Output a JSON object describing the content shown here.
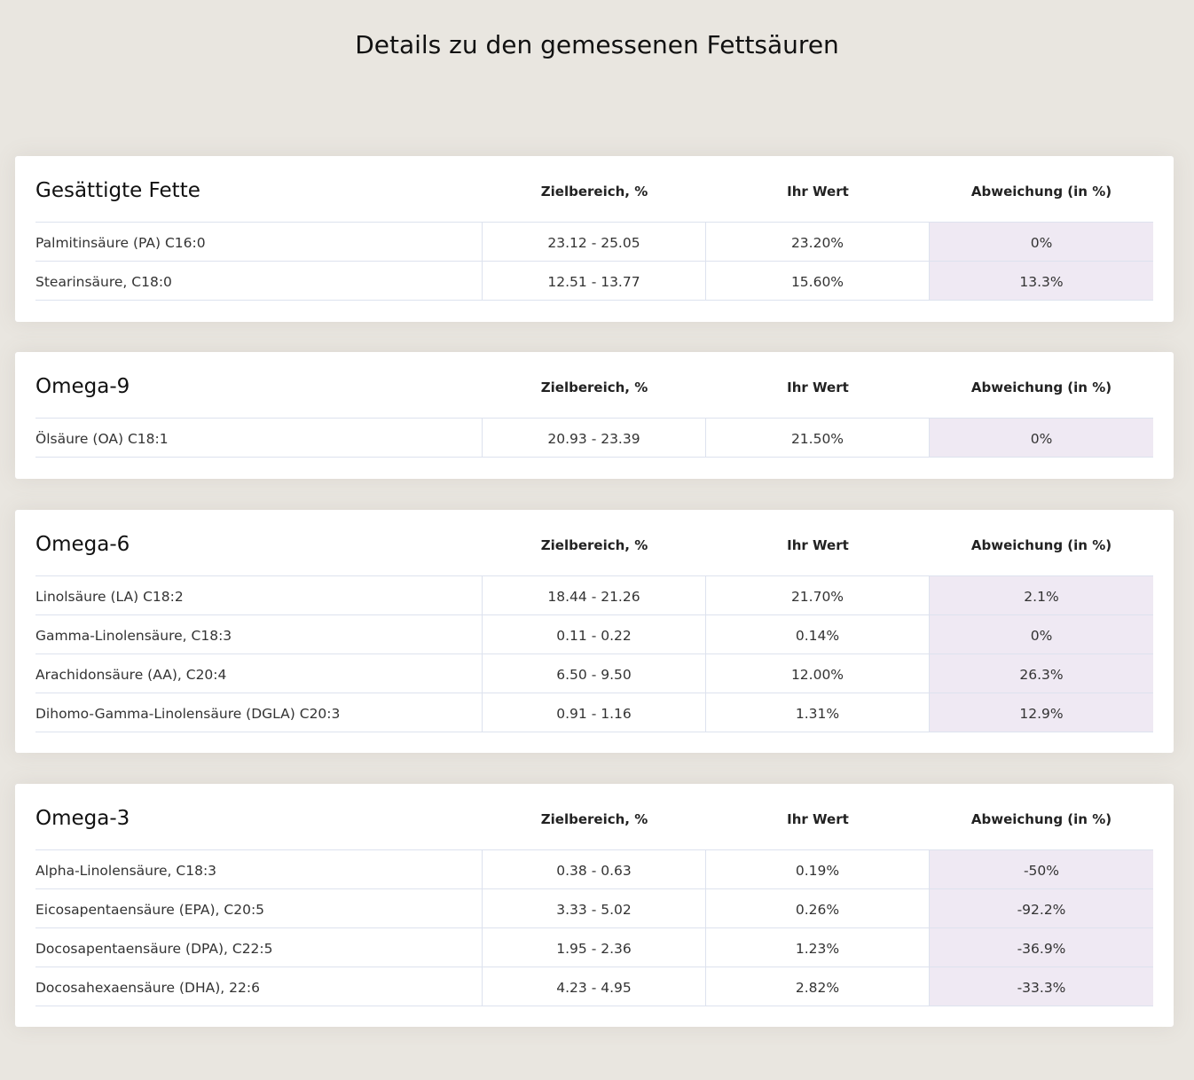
{
  "page": {
    "title": "Details zu den gemessenen Fettsäuren"
  },
  "colors": {
    "background": "#e9e6e0",
    "card": "#ffffff",
    "deviation_cell": "#efe9f3",
    "divider": "#dde2ee"
  },
  "sections": [
    {
      "title": "Gesättigte Fette",
      "col_range": "Zielbereich, %",
      "col_value": "Ihr Wert",
      "col_dev": "Abweichung (in %)",
      "rows": [
        {
          "name": "Palmitinsäure (PA) C16:0",
          "range": "23.12 - 25.05",
          "value": "23.20%",
          "dev": "0%"
        },
        {
          "name": "Stearinsäure, C18:0",
          "range": "12.51 - 13.77",
          "value": "15.60%",
          "dev": "13.3%"
        }
      ]
    },
    {
      "title": "Omega-9",
      "col_range": "Zielbereich, %",
      "col_value": "Ihr Wert",
      "col_dev": "Abweichung (in %)",
      "rows": [
        {
          "name": "Ölsäure (OA) C18:1",
          "range": "20.93 - 23.39",
          "value": "21.50%",
          "dev": "0%"
        }
      ]
    },
    {
      "title": "Omega-6",
      "col_range": "Zielbereich, %",
      "col_value": "Ihr Wert",
      "col_dev": "Abweichung (in %)",
      "rows": [
        {
          "name": "Linolsäure (LA) C18:2",
          "range": "18.44 - 21.26",
          "value": "21.70%",
          "dev": "2.1%"
        },
        {
          "name": "Gamma-Linolensäure, C18:3",
          "range": "0.11 - 0.22",
          "value": "0.14%",
          "dev": "0%"
        },
        {
          "name": "Arachidonsäure (AA), C20:4",
          "range": "6.50 - 9.50",
          "value": "12.00%",
          "dev": "26.3%"
        },
        {
          "name": "Dihomo-Gamma-Linolensäure (DGLA) C20:3",
          "range": "0.91 - 1.16",
          "value": "1.31%",
          "dev": "12.9%"
        }
      ]
    },
    {
      "title": "Omega-3",
      "col_range": "Zielbereich, %",
      "col_value": "Ihr Wert",
      "col_dev": "Abweichung (in %)",
      "rows": [
        {
          "name": "Alpha-Linolensäure, C18:3",
          "range": "0.38 - 0.63",
          "value": "0.19%",
          "dev": "-50%"
        },
        {
          "name": "Eicosapentaensäure (EPA), C20:5",
          "range": "3.33 - 5.02",
          "value": "0.26%",
          "dev": "-92.2%"
        },
        {
          "name": "Docosapentaensäure (DPA), C22:5",
          "range": "1.95 - 2.36",
          "value": "1.23%",
          "dev": "-36.9%"
        },
        {
          "name": "Docosahexaensäure (DHA), 22:6",
          "range": "4.23 - 4.95",
          "value": "2.82%",
          "dev": "-33.3%"
        }
      ]
    }
  ]
}
